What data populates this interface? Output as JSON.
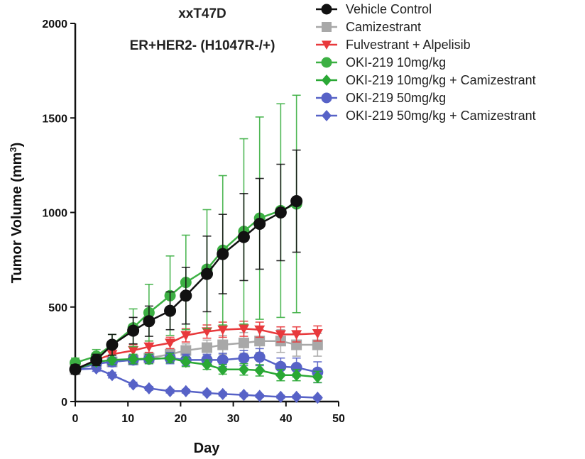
{
  "chart_data": {
    "type": "line",
    "title": "xxT47D",
    "subtitle": "ER+HER2- (H1047R-/+)",
    "xlabel": "Day",
    "ylabel": "Tumor Volume (mm³)",
    "ylabel_main": "Tumor Volume (mm",
    "ylabel_sup": "3",
    "ylabel_close": ")",
    "xlim": [
      0,
      50
    ],
    "ylim": [
      0,
      2000
    ],
    "xticks": [
      0,
      10,
      20,
      30,
      40,
      50
    ],
    "yticks": [
      0,
      500,
      1000,
      1500,
      2000
    ],
    "xtick_labels": [
      "0",
      "10",
      "20",
      "30",
      "40",
      "50"
    ],
    "ytick_labels": [
      "0",
      "500",
      "1000",
      "1500",
      "2000"
    ],
    "grid": false,
    "legend_position": "top-right",
    "series": [
      {
        "name": "Vehicle Control",
        "color": "#111111",
        "marker": "circle",
        "x": [
          0,
          4,
          7,
          11,
          14,
          18,
          21,
          25,
          28,
          32,
          35,
          39,
          42
        ],
        "y": [
          170,
          220,
          300,
          375,
          425,
          480,
          560,
          675,
          780,
          870,
          940,
          1000,
          1060
        ],
        "err": [
          25,
          30,
          55,
          70,
          80,
          100,
          150,
          200,
          210,
          230,
          240,
          255,
          270
        ]
      },
      {
        "name": "Camizestrant",
        "color": "#a8a8a8",
        "marker": "square",
        "x": [
          0,
          4,
          7,
          11,
          14,
          18,
          21,
          25,
          28,
          32,
          35,
          39,
          42,
          46
        ],
        "y": [
          170,
          200,
          210,
          220,
          230,
          250,
          270,
          285,
          300,
          310,
          320,
          320,
          300,
          300
        ],
        "err": [
          20,
          20,
          25,
          25,
          30,
          30,
          35,
          40,
          50,
          55,
          60,
          60,
          60,
          60
        ]
      },
      {
        "name": "Fulvestrant + Alpelisib",
        "color": "#e8393c",
        "marker": "triangle-down",
        "x": [
          0,
          4,
          7,
          11,
          14,
          18,
          21,
          25,
          28,
          32,
          35,
          39,
          42,
          46
        ],
        "y": [
          170,
          220,
          250,
          270,
          290,
          310,
          350,
          370,
          380,
          385,
          380,
          355,
          355,
          360
        ],
        "err": [
          20,
          25,
          30,
          30,
          30,
          30,
          35,
          35,
          40,
          40,
          40,
          40,
          40,
          40
        ]
      },
      {
        "name": "OKI-219 10mg/kg",
        "color": "#3cb043",
        "marker": "circle",
        "x": [
          0,
          4,
          7,
          11,
          14,
          18,
          21,
          25,
          28,
          32,
          35,
          39,
          42
        ],
        "y": [
          205,
          240,
          300,
          390,
          470,
          560,
          630,
          700,
          800,
          900,
          970,
          1010,
          1045
        ],
        "err": [
          25,
          35,
          55,
          100,
          150,
          210,
          250,
          315,
          395,
          490,
          535,
          565,
          575
        ]
      },
      {
        "name": "OKI-219 10mg/kg + Camizestrant",
        "color": "#2aa835",
        "marker": "diamond",
        "x": [
          0,
          4,
          7,
          11,
          14,
          18,
          21,
          25,
          28,
          32,
          35,
          39,
          42,
          46
        ],
        "y": [
          170,
          210,
          220,
          225,
          225,
          230,
          210,
          195,
          170,
          170,
          165,
          140,
          140,
          130
        ],
        "err": [
          20,
          20,
          25,
          25,
          25,
          25,
          25,
          25,
          25,
          30,
          30,
          30,
          30,
          30
        ]
      },
      {
        "name": "OKI-219 50mg/kg",
        "color": "#5762c7",
        "marker": "circle",
        "x": [
          0,
          4,
          7,
          11,
          14,
          18,
          21,
          25,
          28,
          32,
          35,
          39,
          42,
          46
        ],
        "y": [
          170,
          200,
          210,
          220,
          225,
          230,
          220,
          220,
          220,
          230,
          235,
          185,
          180,
          155
        ],
        "err": [
          20,
          20,
          25,
          25,
          25,
          30,
          30,
          30,
          35,
          40,
          45,
          45,
          50,
          55
        ]
      },
      {
        "name": "OKI-219 50mg/kg + Camizestrant",
        "color": "#5762c7",
        "marker": "diamond",
        "x": [
          0,
          4,
          7,
          11,
          14,
          18,
          21,
          25,
          28,
          32,
          35,
          39,
          42,
          46
        ],
        "y": [
          170,
          175,
          140,
          90,
          70,
          55,
          55,
          45,
          40,
          35,
          30,
          25,
          25,
          20
        ],
        "err": [
          15,
          15,
          15,
          12,
          10,
          10,
          10,
          10,
          10,
          10,
          8,
          8,
          8,
          8
        ]
      }
    ]
  }
}
